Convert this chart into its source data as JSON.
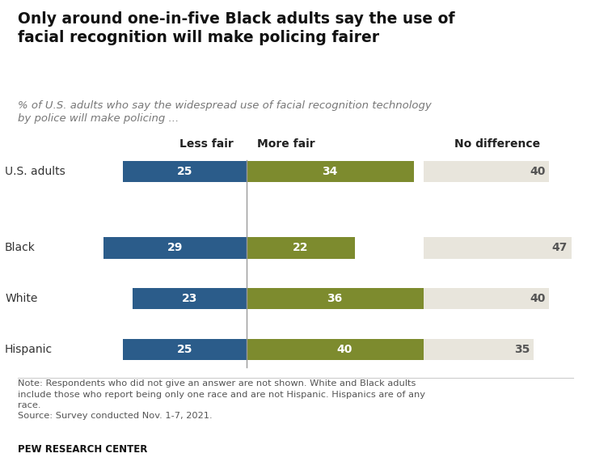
{
  "title": "Only around one-in-five Black adults say the use of\nfacial recognition will make policing fairer",
  "subtitle": "% of U.S. adults who say the widespread use of facial recognition technology\nby police will make policing ...",
  "row_labels": [
    "U.S. adults",
    "Black",
    "White",
    "Hispanic"
  ],
  "less_fair": [
    25,
    29,
    23,
    25
  ],
  "more_fair": [
    34,
    22,
    36,
    40
  ],
  "no_difference": [
    40,
    47,
    40,
    35
  ],
  "less_fair_color": "#2B5C8A",
  "more_fair_color": "#7D8B2E",
  "no_diff_color": "#E8E5DC",
  "bar_text_color": "#FFFFFF",
  "no_diff_text_color": "#555555",
  "col_header_less": "Less fair",
  "col_header_more": "More fair",
  "col_header_nodiff": "No difference",
  "note_line1": "Note: Respondents who did not give an answer are not shown. White and Black adults",
  "note_line2": "include those who report being only one race and are not Hispanic. Hispanics are of any",
  "note_line3": "race.",
  "note_line4": "Source: Survey conducted Nov. 1-7, 2021.",
  "footer": "PEW RESEARCH CENTER",
  "bg_color": "#FFFFFF"
}
